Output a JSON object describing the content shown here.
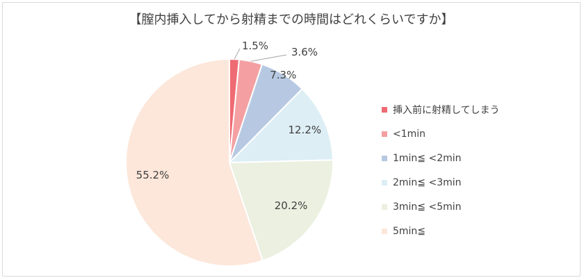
{
  "chart_data": {
    "type": "pie",
    "title": "【膣内挿入してから射精までの時間はどれくらいですか】",
    "categories": [
      "挿入前に射精してしまう",
      "<1min",
      "1min≦ <2min",
      "2min≦ <3min",
      "3min≦ <5min",
      "5min≦"
    ],
    "values": [
      1.5,
      3.6,
      7.3,
      12.2,
      20.2,
      55.2
    ],
    "value_labels": [
      "1.5%",
      "3.6%",
      "7.3%",
      "12.2%",
      "20.2%",
      "55.2%"
    ],
    "colors": [
      "#ef6b73",
      "#f4a0a2",
      "#b7c9e2",
      "#ddeef5",
      "#ebf0e0",
      "#fce7da"
    ],
    "legend_position": "right",
    "start_angle_deg": 0,
    "direction": "clockwise"
  }
}
